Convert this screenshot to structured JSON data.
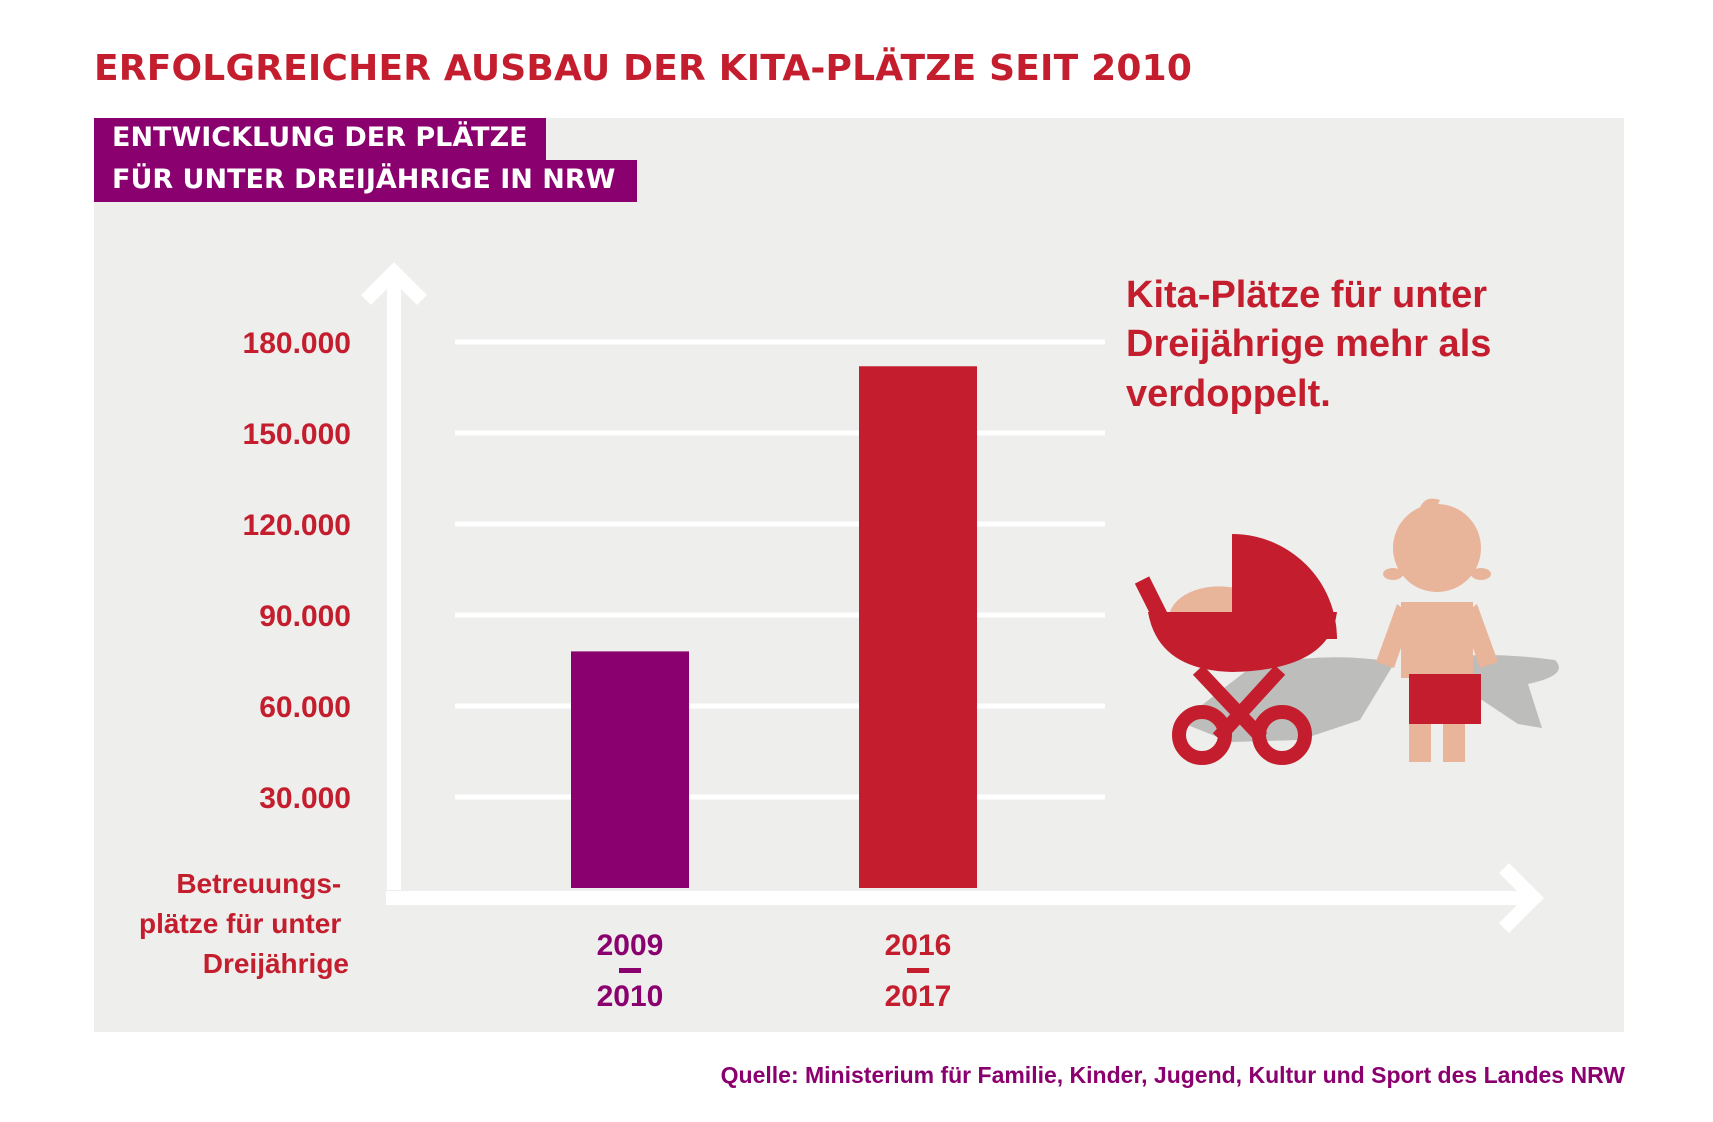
{
  "title": "ERFOLGREICHER AUSBAU DER KITA-PLÄTZE SEIT 2010",
  "subtitle_lines": [
    "ENTWICKLUNG DER PLÄTZE",
    "FÜR UNTER DREIJÄHRIGE IN NRW"
  ],
  "source": "Quelle: Ministerium für Familie, Kinder, Jugend, Kultur und Sport des Landes NRW",
  "callout_lines": [
    "Kita-Plätze für unter",
    "Dreijährige mehr als",
    "verdoppelt."
  ],
  "colors": {
    "title": "#c41e2e",
    "purple": "#8a006e",
    "red": "#c41e2e",
    "panel": "#eeeeec",
    "gridline": "#ffffff",
    "skin": "#e8b49a",
    "shadow": "#bdbdbb"
  },
  "icons": [
    "stroller-icon",
    "toddler-icon"
  ],
  "chart_data": {
    "type": "bar",
    "categories": [
      [
        "2009",
        "2010"
      ],
      [
        "2016",
        "2017"
      ]
    ],
    "values": [
      78000,
      172000
    ],
    "bar_colors": [
      "#8a006e",
      "#c41e2e"
    ],
    "yticks": [
      30000,
      60000,
      90000,
      120000,
      150000,
      180000
    ],
    "ytick_labels": [
      "30.000",
      "60.000",
      "90.000",
      "120.000",
      "150.000",
      "180.000"
    ],
    "ylabel_lines": [
      "Betreuungs-",
      "plätze für unter",
      "Dreijährige"
    ],
    "ylim": [
      0,
      200000
    ],
    "grid": true
  }
}
